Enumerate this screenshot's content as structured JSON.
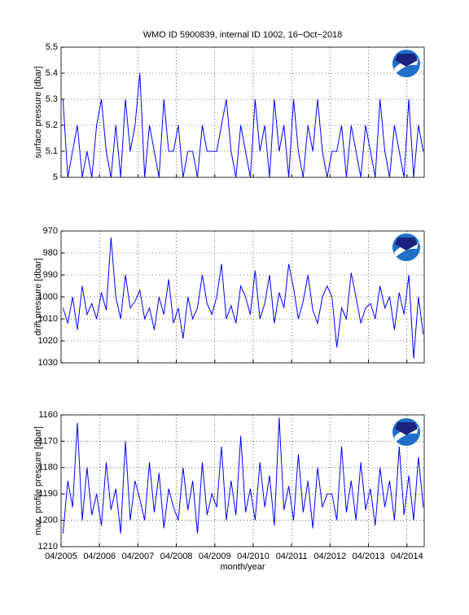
{
  "chart_data": [
    {
      "type": "line",
      "title": "WMO ID 5900839, internal ID 1002, 16−Oct−2018",
      "ylabel": "surface pressure [dbar]",
      "color": "#0000ff",
      "grid": true,
      "xlim": [
        2005.25,
        2014.7
      ],
      "xticks": [
        2005.25,
        2006.25,
        2007.25,
        2008.25,
        2009.25,
        2010.25,
        2011.25,
        2012.25,
        2013.25,
        2014.25
      ],
      "ylim": [
        5,
        5.5
      ],
      "yticks": [
        5,
        5.1,
        5.2,
        5.3,
        5.4,
        5.5
      ],
      "x": [
        2005.3,
        2005.425,
        2005.55,
        2005.675,
        2005.8,
        2005.925,
        2006.05,
        2006.175,
        2006.3,
        2006.425,
        2006.55,
        2006.675,
        2006.8,
        2006.925,
        2007.05,
        2007.175,
        2007.3,
        2007.425,
        2007.55,
        2007.675,
        2007.8,
        2007.925,
        2008.05,
        2008.175,
        2008.3,
        2008.425,
        2008.55,
        2008.675,
        2008.8,
        2008.925,
        2009.05,
        2009.175,
        2009.3,
        2009.425,
        2009.55,
        2009.675,
        2009.8,
        2009.925,
        2010.05,
        2010.175,
        2010.3,
        2010.425,
        2010.55,
        2010.675,
        2010.8,
        2010.925,
        2011.05,
        2011.175,
        2011.3,
        2011.425,
        2011.55,
        2011.675,
        2011.8,
        2011.925,
        2012.05,
        2012.175,
        2012.3,
        2012.425,
        2012.55,
        2012.675,
        2012.8,
        2012.925,
        2013.05,
        2013.175,
        2013.3,
        2013.425,
        2013.55,
        2013.675,
        2013.8,
        2013.925,
        2014.05,
        2014.175,
        2014.3,
        2014.425,
        2014.55,
        2014.675
      ],
      "values": [
        5.3,
        5.0,
        5.1,
        5.2,
        5.0,
        5.1,
        5.0,
        5.2,
        5.3,
        5.1,
        5.0,
        5.2,
        5.0,
        5.3,
        5.1,
        5.2,
        5.4,
        5.0,
        5.2,
        5.1,
        5.0,
        5.3,
        5.1,
        5.1,
        5.2,
        5.0,
        5.1,
        5.1,
        5.0,
        5.2,
        5.1,
        5.1,
        5.1,
        5.2,
        5.3,
        5.1,
        5.0,
        5.2,
        5.1,
        5.0,
        5.3,
        5.1,
        5.2,
        5.0,
        5.3,
        5.1,
        5.2,
        5.0,
        5.3,
        5.1,
        5.0,
        5.2,
        5.1,
        5.3,
        5.1,
        5.0,
        5.1,
        5.1,
        5.2,
        5.0,
        5.2,
        5.1,
        5.0,
        5.2,
        5.1,
        5.0,
        5.3,
        5.1,
        5.0,
        5.2,
        5.1,
        5.0,
        5.3,
        5.0,
        5.2,
        5.1
      ]
    },
    {
      "type": "line",
      "ylabel": "drift pressure [dbar]",
      "color": "#0000ff",
      "grid": true,
      "xlim": [
        2005.25,
        2014.7
      ],
      "xticks": [
        2005.25,
        2006.25,
        2007.25,
        2008.25,
        2009.25,
        2010.25,
        2011.25,
        2012.25,
        2013.25,
        2014.25
      ],
      "ylim": [
        1030,
        970
      ],
      "yticks": [
        970,
        980,
        990,
        1000,
        1010,
        1020,
        1030
      ],
      "x": [
        2005.3,
        2005.425,
        2005.55,
        2005.675,
        2005.8,
        2005.925,
        2006.05,
        2006.175,
        2006.3,
        2006.425,
        2006.55,
        2006.675,
        2006.8,
        2006.925,
        2007.05,
        2007.175,
        2007.3,
        2007.425,
        2007.55,
        2007.675,
        2007.8,
        2007.925,
        2008.05,
        2008.175,
        2008.3,
        2008.425,
        2008.55,
        2008.675,
        2008.8,
        2008.925,
        2009.05,
        2009.175,
        2009.3,
        2009.425,
        2009.55,
        2009.675,
        2009.8,
        2009.925,
        2010.05,
        2010.175,
        2010.3,
        2010.425,
        2010.55,
        2010.675,
        2010.8,
        2010.925,
        2011.05,
        2011.175,
        2011.3,
        2011.425,
        2011.55,
        2011.675,
        2011.8,
        2011.925,
        2012.05,
        2012.175,
        2012.3,
        2012.425,
        2012.55,
        2012.675,
        2012.8,
        2012.925,
        2013.05,
        2013.175,
        2013.3,
        2013.425,
        2013.55,
        2013.675,
        2013.8,
        2013.925,
        2014.05,
        2014.175,
        2014.3,
        2014.425,
        2014.55,
        2014.675
      ],
      "values": [
        1005,
        1012,
        1000,
        1015,
        995,
        1008,
        1003,
        1010,
        998,
        1006,
        973,
        1000,
        1010,
        990,
        1005,
        1002,
        997,
        1010,
        1005,
        1015,
        1000,
        1008,
        992,
        1012,
        1005,
        1019,
        1000,
        1010,
        1005,
        990,
        1003,
        1008,
        1000,
        985,
        1010,
        1004,
        1012,
        995,
        1000,
        1008,
        988,
        1010,
        1003,
        990,
        1012,
        998,
        1005,
        985,
        996,
        1010,
        1002,
        990,
        1006,
        1012,
        1000,
        995,
        1000,
        1023,
        1005,
        1010,
        989,
        1000,
        1012,
        1005,
        1003,
        1010,
        995,
        1005,
        1000,
        1015,
        998,
        1008,
        990,
        1028,
        1000,
        1017
      ]
    },
    {
      "type": "line",
      "ylabel": "max. profile pressure [dbar]",
      "xlabel": "month/year",
      "color": "#0000ff",
      "grid": true,
      "xlim": [
        2005.25,
        2014.7
      ],
      "xticks": [
        {
          "value": 2005.25,
          "label": "04/2005"
        },
        {
          "value": 2006.25,
          "label": "04/2006"
        },
        {
          "value": 2007.25,
          "label": "04/2007"
        },
        {
          "value": 2008.25,
          "label": "04/2008"
        },
        {
          "value": 2009.25,
          "label": "04/2009"
        },
        {
          "value": 2010.25,
          "label": "04/2010"
        },
        {
          "value": 2011.25,
          "label": "04/2011"
        },
        {
          "value": 2012.25,
          "label": "04/2012"
        },
        {
          "value": 2013.25,
          "label": "04/2013"
        },
        {
          "value": 2014.25,
          "label": "04/2014"
        }
      ],
      "ylim": [
        1210,
        1160
      ],
      "yticks": [
        1160,
        1170,
        1180,
        1190,
        1200,
        1210
      ],
      "x": [
        2005.3,
        2005.425,
        2005.55,
        2005.675,
        2005.8,
        2005.925,
        2006.05,
        2006.175,
        2006.3,
        2006.425,
        2006.55,
        2006.675,
        2006.8,
        2006.925,
        2007.05,
        2007.175,
        2007.3,
        2007.425,
        2007.55,
        2007.675,
        2007.8,
        2007.925,
        2008.05,
        2008.175,
        2008.3,
        2008.425,
        2008.55,
        2008.675,
        2008.8,
        2008.925,
        2009.05,
        2009.175,
        2009.3,
        2009.425,
        2009.55,
        2009.675,
        2009.8,
        2009.925,
        2010.05,
        2010.175,
        2010.3,
        2010.425,
        2010.55,
        2010.675,
        2010.8,
        2010.925,
        2011.05,
        2011.175,
        2011.3,
        2011.425,
        2011.55,
        2011.675,
        2011.8,
        2011.925,
        2012.05,
        2012.175,
        2012.3,
        2012.425,
        2012.55,
        2012.675,
        2012.8,
        2012.925,
        2013.05,
        2013.175,
        2013.3,
        2013.425,
        2013.55,
        2013.675,
        2013.8,
        2013.925,
        2014.05,
        2014.175,
        2014.3,
        2014.425,
        2014.55,
        2014.675
      ],
      "values": [
        1205,
        1185,
        1195,
        1163,
        1200,
        1180,
        1198,
        1190,
        1202,
        1178,
        1196,
        1188,
        1205,
        1170,
        1200,
        1185,
        1192,
        1200,
        1178,
        1197,
        1182,
        1203,
        1188,
        1195,
        1200,
        1180,
        1196,
        1185,
        1205,
        1178,
        1198,
        1190,
        1195,
        1172,
        1200,
        1185,
        1198,
        1168,
        1197,
        1188,
        1200,
        1178,
        1195,
        1183,
        1202,
        1161,
        1196,
        1187,
        1200,
        1175,
        1197,
        1185,
        1203,
        1180,
        1195,
        1190,
        1190,
        1200,
        1172,
        1197,
        1185,
        1200,
        1178,
        1196,
        1188,
        1202,
        1180,
        1195,
        1185,
        1200,
        1172,
        1198,
        1183,
        1200,
        1176,
        1195
      ]
    }
  ]
}
